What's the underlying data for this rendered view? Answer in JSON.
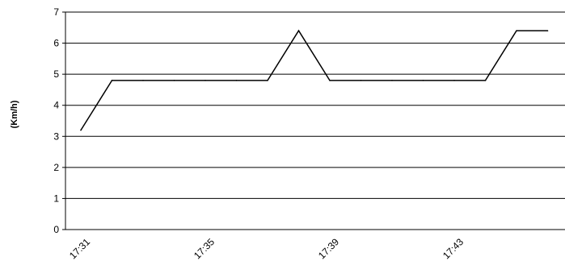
{
  "chart_data": {
    "type": "line",
    "title": "",
    "xlabel": "",
    "ylabel": "(Km/h)",
    "ylim": [
      0,
      7
    ],
    "yticks": [
      0,
      1,
      2,
      3,
      4,
      5,
      6,
      7
    ],
    "xticks": [
      "17:31",
      "17:35",
      "17:39",
      "17:43"
    ],
    "grid": "horizontal",
    "series": [
      {
        "x": [
          "17:31",
          "17:32",
          "17:33",
          "17:34",
          "17:35",
          "17:36",
          "17:37",
          "17:38",
          "17:39",
          "17:40",
          "17:41",
          "17:42",
          "17:43",
          "17:44",
          "17:45",
          "17:46"
        ],
        "values": [
          3.2,
          4.8,
          4.8,
          4.8,
          4.8,
          4.8,
          4.8,
          6.4,
          4.8,
          4.8,
          4.8,
          4.8,
          4.8,
          4.8,
          6.4,
          6.4
        ],
        "color": "#000000"
      }
    ]
  }
}
